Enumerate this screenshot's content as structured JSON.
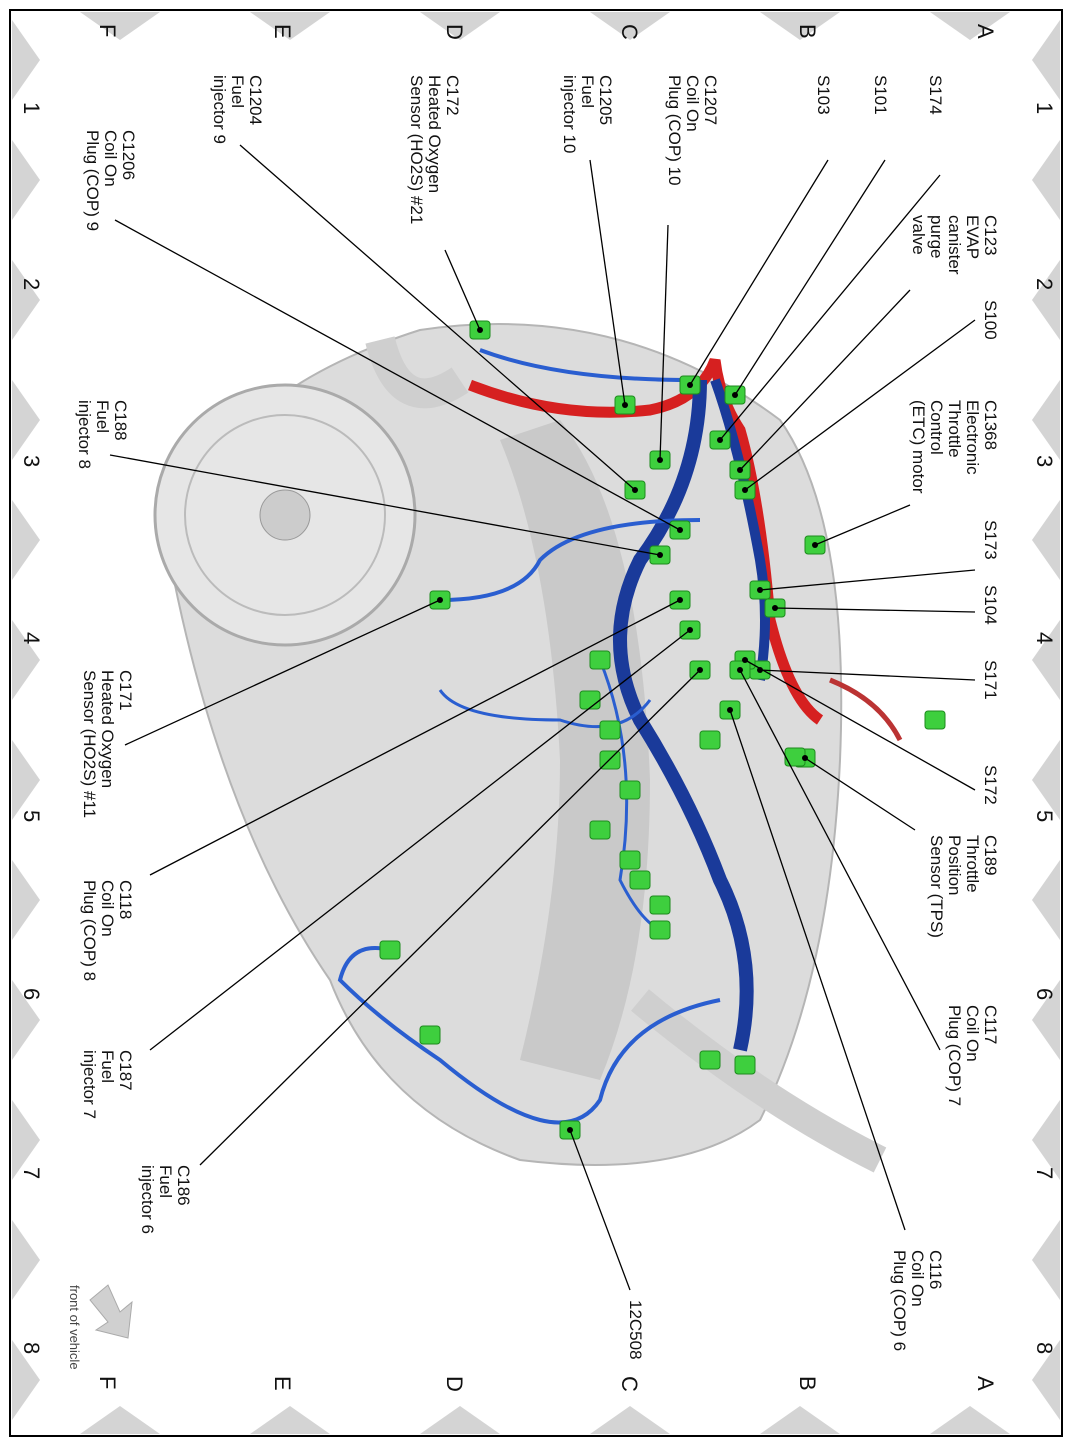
{
  "grid": {
    "columns": [
      "A",
      "B",
      "C",
      "D",
      "E",
      "F"
    ],
    "rows": [
      "1",
      "2",
      "3",
      "4",
      "5",
      "6",
      "7",
      "8"
    ]
  },
  "labels": [
    {
      "lines": [
        "S174"
      ]
    },
    {
      "lines": [
        "S101"
      ]
    },
    {
      "lines": [
        "S103"
      ]
    },
    {
      "lines": [
        "C123",
        "EVAP",
        "canister",
        "purge",
        "valve"
      ]
    },
    {
      "lines": [
        "S100"
      ]
    },
    {
      "lines": [
        "C1368",
        "Electronic",
        "Throttle",
        "Control",
        "(ETC) motor"
      ]
    },
    {
      "lines": [
        "S173"
      ]
    },
    {
      "lines": [
        "S104"
      ]
    },
    {
      "lines": [
        "S171"
      ]
    },
    {
      "lines": [
        "S172"
      ]
    },
    {
      "lines": [
        "C189",
        "Throttle",
        "Position",
        "Sensor (TPS)"
      ]
    },
    {
      "lines": [
        "C117",
        "Coil On",
        "Plug (COP) 7"
      ]
    },
    {
      "lines": [
        "C116",
        "Coil On",
        "Plug (COP) 6"
      ]
    },
    {
      "lines": [
        "12C508"
      ]
    },
    {
      "lines": [
        "C1207",
        "Coil On",
        "Plug (COP) 10"
      ]
    },
    {
      "lines": [
        "C1205",
        "Fuel",
        "injector 10"
      ]
    },
    {
      "lines": [
        "C172",
        "Heated Oxygen",
        "Sensor (HO2S) #21"
      ]
    },
    {
      "lines": [
        "C1204",
        "Fuel",
        "injector 9"
      ]
    },
    {
      "lines": [
        "C1206",
        "Coil On",
        "Plug (COP) 9"
      ]
    },
    {
      "lines": [
        "C188",
        "Fuel",
        "injector 8"
      ]
    },
    {
      "lines": [
        "C171",
        "Heated Oxygen",
        "Sensor (HO2S) #11"
      ]
    },
    {
      "lines": [
        "C118",
        "Coil On",
        "Plug (COP) 8"
      ]
    },
    {
      "lines": [
        "C187",
        "Fuel",
        "injector 7"
      ]
    },
    {
      "lines": [
        "C186",
        "Fuel",
        "injector 6"
      ]
    }
  ],
  "orientation": "front of vehicle"
}
